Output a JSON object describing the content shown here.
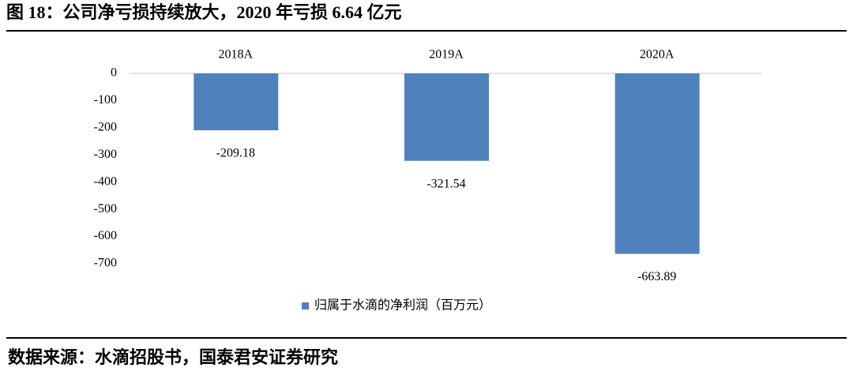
{
  "chart_data": {
    "type": "bar",
    "title": "图 18：公司净亏损持续放大，2020 年亏损 6.64 亿元",
    "categories": [
      "2018A",
      "2019A",
      "2020A"
    ],
    "series": [
      {
        "name": "归属于水滴的净利润（百万元）",
        "color": "#4f81bd",
        "values": [
          -209.18,
          -321.54,
          -663.89
        ]
      }
    ],
    "ylim": [
      -700,
      0
    ],
    "yticks": [
      0,
      -100,
      -200,
      -300,
      -400,
      -500,
      -600,
      -700
    ],
    "legend": "bottom"
  },
  "source": "数据来源：水滴招股书，国泰君安证券研究"
}
